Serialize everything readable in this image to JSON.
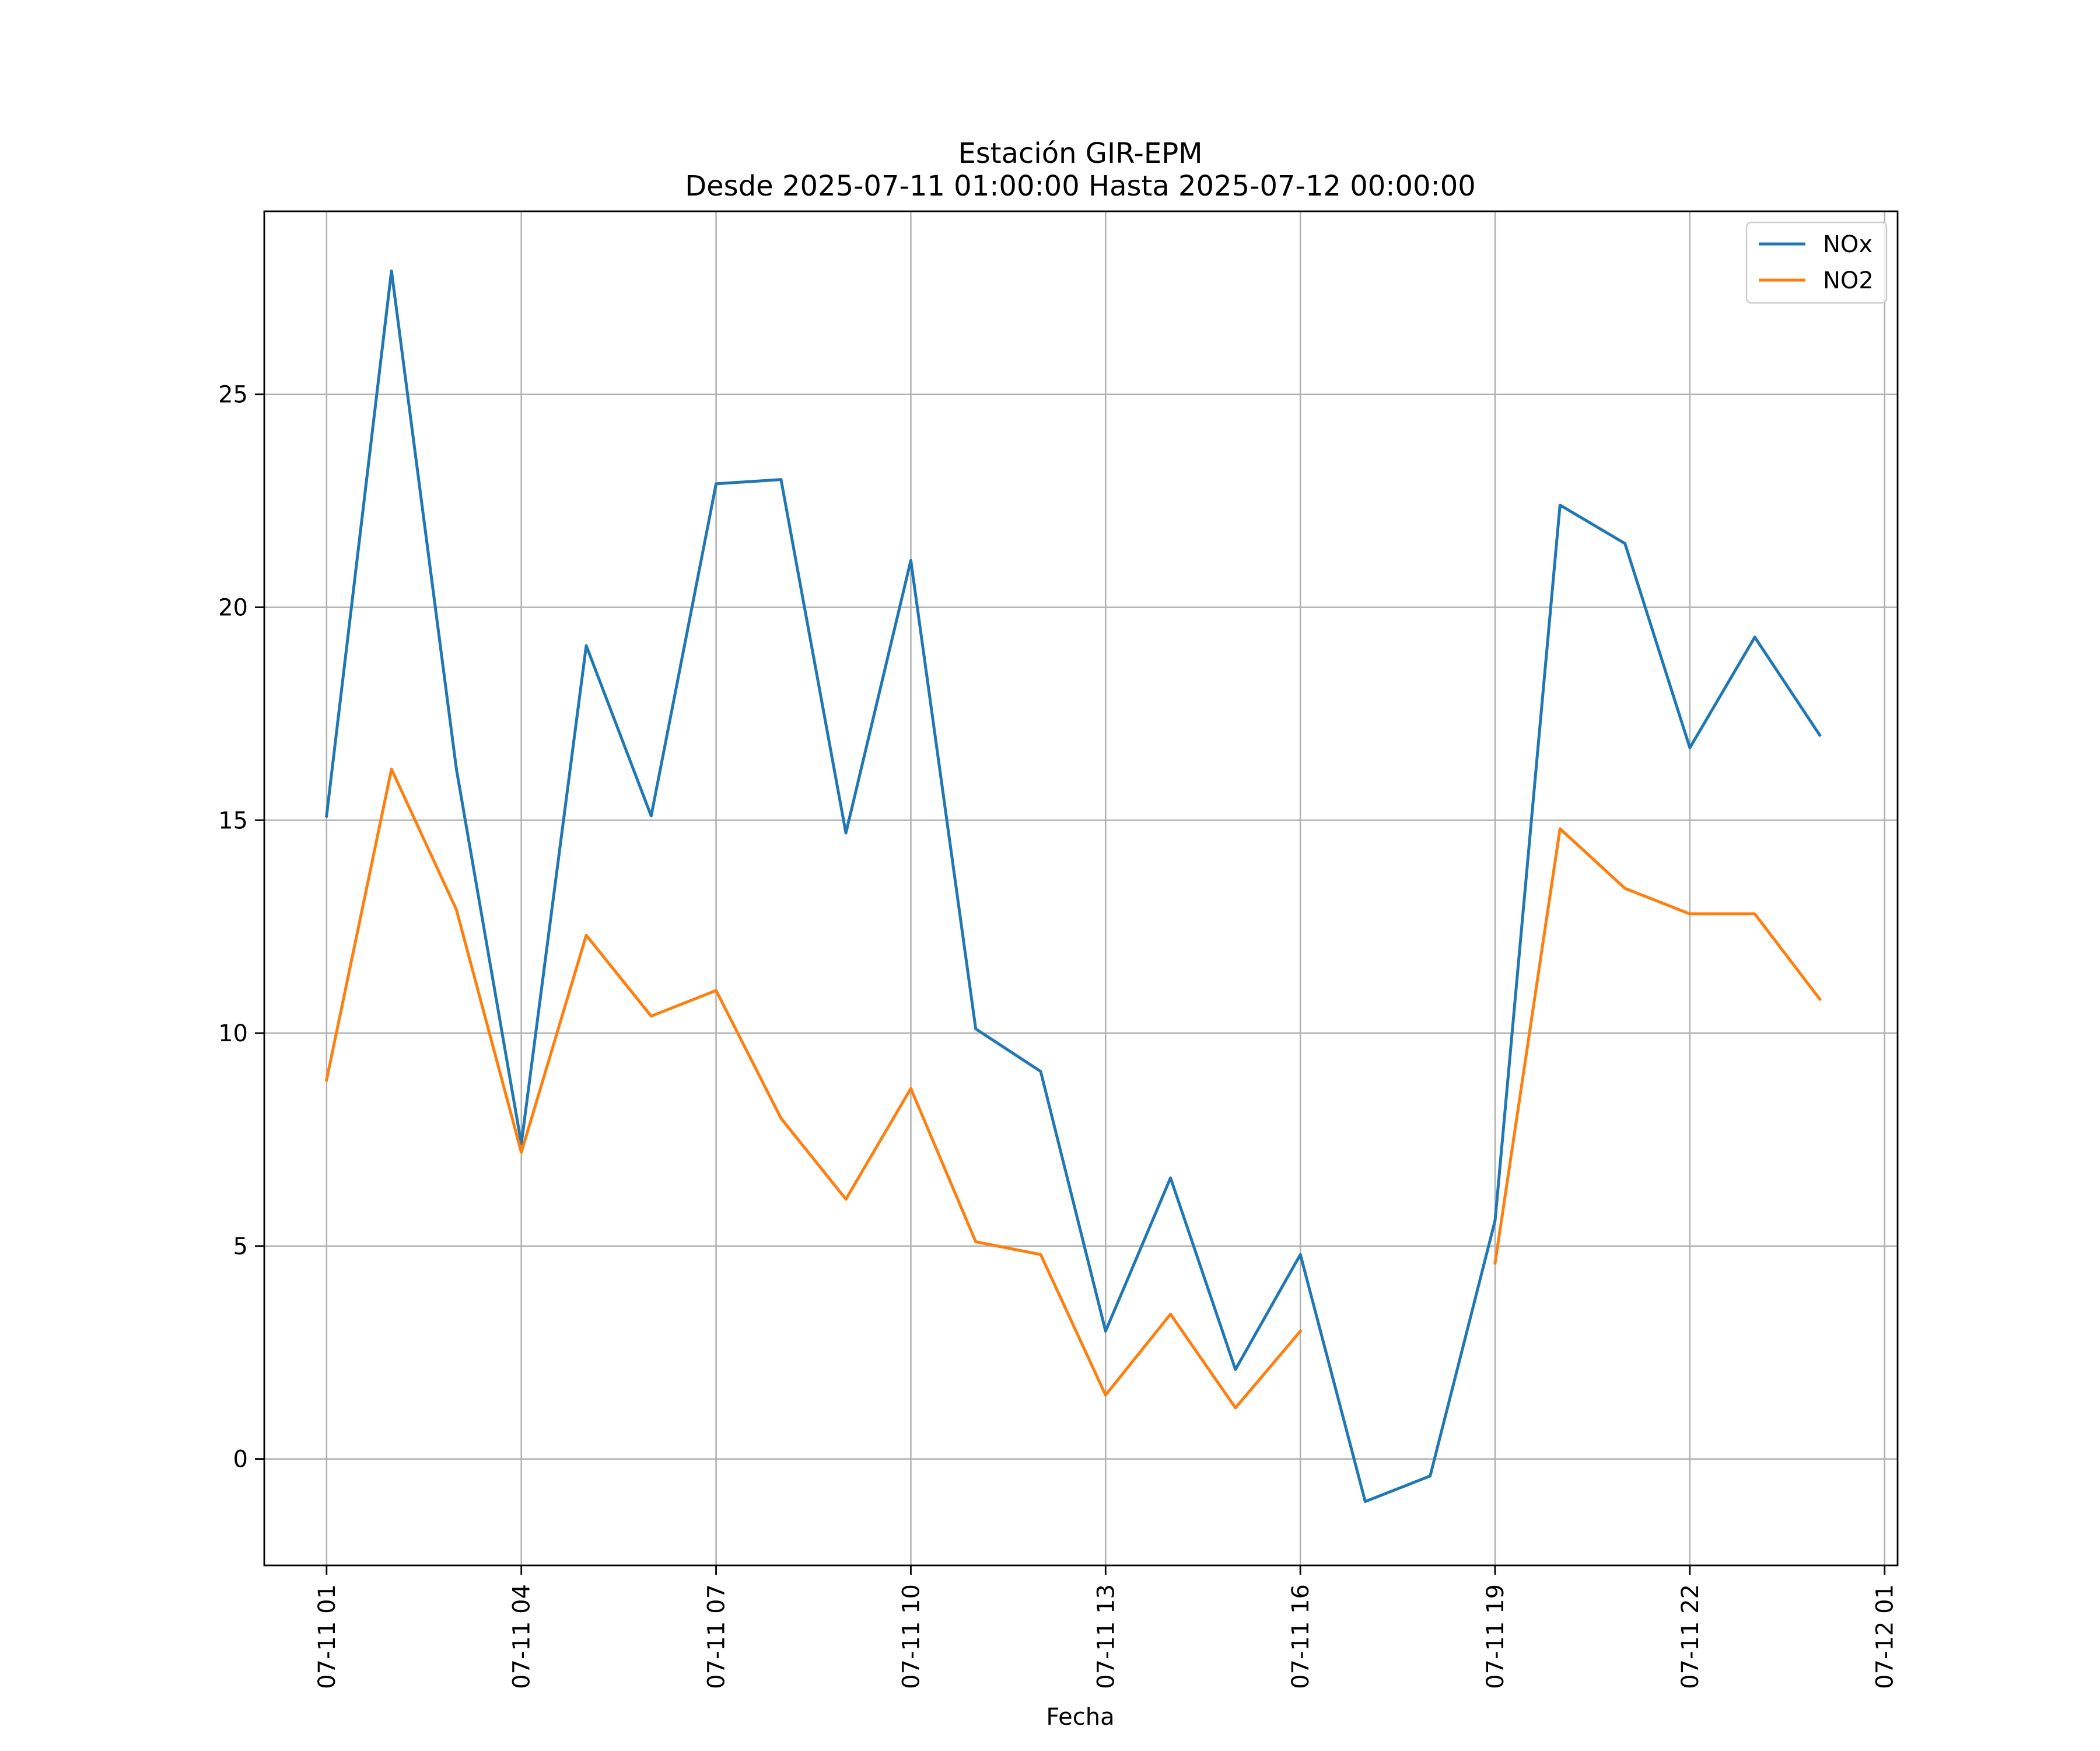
{
  "chart_data": {
    "type": "line",
    "title": "Estación GIR-EPM",
    "subtitle": "Desde 2025-07-11 01:00:00 Hasta 2025-07-12 00:00:00",
    "xlabel": "Fecha",
    "ylabel": "",
    "grid": true,
    "legend_position": "top-right",
    "x": [
      "07-11 01",
      "07-11 02",
      "07-11 03",
      "07-11 04",
      "07-11 05",
      "07-11 06",
      "07-11 07",
      "07-11 08",
      "07-11 09",
      "07-11 10",
      "07-11 11",
      "07-11 12",
      "07-11 13",
      "07-11 14",
      "07-11 15",
      "07-11 16",
      "07-11 17",
      "07-11 18",
      "07-11 19",
      "07-11 20",
      "07-11 21",
      "07-11 22",
      "07-11 23",
      "07-12 00"
    ],
    "xlim_hours": [
      -0.96,
      24.2
    ],
    "x_ticks": [
      {
        "hour": 0,
        "label": "07-11 01"
      },
      {
        "hour": 3,
        "label": "07-11 04"
      },
      {
        "hour": 6,
        "label": "07-11 07"
      },
      {
        "hour": 9,
        "label": "07-11 10"
      },
      {
        "hour": 12,
        "label": "07-11 13"
      },
      {
        "hour": 15,
        "label": "07-11 16"
      },
      {
        "hour": 18,
        "label": "07-11 19"
      },
      {
        "hour": 21,
        "label": "07-11 22"
      },
      {
        "hour": 24,
        "label": "07-12 01"
      }
    ],
    "ylim": [
      -2.5,
      29.3
    ],
    "y_ticks": [
      0,
      5,
      10,
      15,
      20,
      25
    ],
    "series": [
      {
        "name": "NOx",
        "color": "#1f77b4",
        "values": [
          15.1,
          27.9,
          16.2,
          7.4,
          19.1,
          15.1,
          22.9,
          23.0,
          14.7,
          21.1,
          10.1,
          9.1,
          3.0,
          6.6,
          2.1,
          4.8,
          -1.0,
          -0.4,
          5.6,
          22.4,
          21.5,
          16.7,
          19.3,
          17.0
        ]
      },
      {
        "name": "NO2",
        "color": "#ff7f0e",
        "values": [
          8.9,
          16.2,
          12.9,
          7.2,
          12.3,
          10.4,
          11.0,
          8.0,
          6.1,
          8.7,
          5.1,
          4.8,
          1.5,
          3.4,
          1.2,
          3.0,
          null,
          null,
          4.6,
          14.8,
          13.4,
          12.8,
          12.8,
          10.8
        ]
      }
    ]
  }
}
